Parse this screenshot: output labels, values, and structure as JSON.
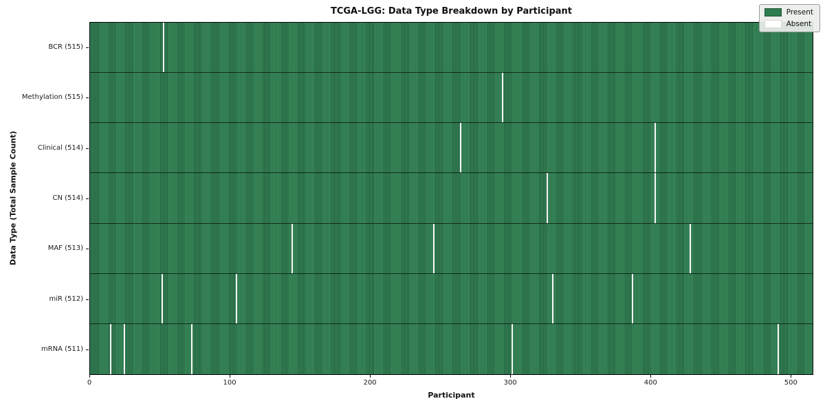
{
  "title": "TCGA-LGG: Data Type Breakdown by Participant",
  "xlabel": "Participant",
  "ylabel": "Data Type (Total Sample Count)",
  "legend": {
    "present_label": "Present",
    "absent_label": "Absent"
  },
  "colors": {
    "present_fill": "#3a8a5c",
    "present_edge": "#205c3a",
    "legend_present": "#2e7d4f",
    "absent": "#fafaf8",
    "row_separator": "#000000"
  },
  "chart_data": {
    "type": "heatmap",
    "title": "TCGA-LGG: Data Type Breakdown by Participant",
    "xlabel": "Participant",
    "ylabel": "Data Type (Total Sample Count)",
    "n_participants": 516,
    "x_ticks": [
      0,
      100,
      200,
      300,
      400,
      500
    ],
    "xlim": [
      0,
      516
    ],
    "grid": false,
    "legend_entries": [
      "Present",
      "Absent"
    ],
    "legend_position": "upper-right",
    "rows": [
      {
        "label": "BCR (515)",
        "data_type": "BCR",
        "present_count": 515,
        "absent_count": 1,
        "absent_participants": [
          52
        ]
      },
      {
        "label": "Methylation (515)",
        "data_type": "Methylation",
        "present_count": 515,
        "absent_count": 1,
        "absent_participants": [
          294
        ]
      },
      {
        "label": "Clinical (514)",
        "data_type": "Clinical",
        "present_count": 514,
        "absent_count": 2,
        "absent_participants": [
          264,
          403
        ]
      },
      {
        "label": "CN (514)",
        "data_type": "CN",
        "present_count": 514,
        "absent_count": 2,
        "absent_participants": [
          326,
          403
        ]
      },
      {
        "label": "MAF (513)",
        "data_type": "MAF",
        "present_count": 513,
        "absent_count": 3,
        "absent_participants": [
          144,
          245,
          428
        ]
      },
      {
        "label": "miR (512)",
        "data_type": "miR",
        "present_count": 512,
        "absent_count": 4,
        "absent_participants": [
          51,
          104,
          330,
          387
        ]
      },
      {
        "label": "mRNA (511)",
        "data_type": "mRNA",
        "present_count": 511,
        "absent_count": 5,
        "absent_participants": [
          14,
          24,
          72,
          301,
          491
        ]
      }
    ]
  }
}
